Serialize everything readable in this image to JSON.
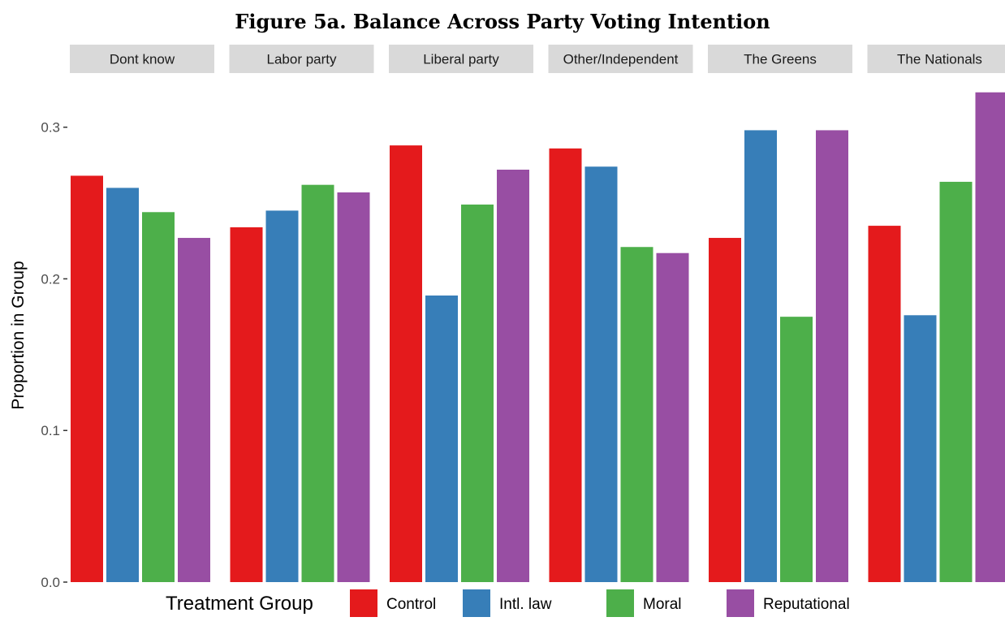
{
  "chart_data": {
    "type": "bar",
    "title": "Figure 5a. Balance Across Party Voting Intention",
    "xlabel": "",
    "ylabel": "Proportion in Group",
    "ylim": [
      0,
      0.325
    ],
    "yticks": [
      0.0,
      0.1,
      0.2,
      0.3
    ],
    "ytick_labels": [
      "0.0",
      "0.1",
      "0.2",
      "0.3"
    ],
    "grid": false,
    "facet": "panels",
    "panels": [
      "Dont know",
      "Labor party",
      "Liberal party",
      "Other/Independent",
      "The Greens",
      "The Nationals"
    ],
    "legend": {
      "title": "Treatment Group",
      "position": "bottom"
    },
    "series": [
      {
        "name": "Control",
        "color": "#e41a1c",
        "values": [
          0.268,
          0.234,
          0.288,
          0.286,
          0.227,
          0.235
        ]
      },
      {
        "name": "Intl. law",
        "color": "#377eb8",
        "values": [
          0.26,
          0.245,
          0.189,
          0.274,
          0.298,
          0.176
        ]
      },
      {
        "name": "Moral",
        "color": "#4daf4a",
        "values": [
          0.244,
          0.262,
          0.249,
          0.221,
          0.175,
          0.264
        ]
      },
      {
        "name": "Reputational",
        "color": "#984ea3",
        "values": [
          0.227,
          0.257,
          0.272,
          0.217,
          0.298,
          0.323
        ]
      }
    ]
  }
}
